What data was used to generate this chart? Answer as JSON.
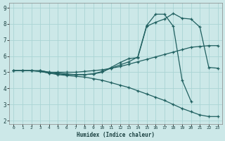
{
  "xlabel": "Humidex (Indice chaleur)",
  "bg_color": "#cce8e8",
  "line_color": "#206060",
  "grid_color": "#b0d8d8",
  "xlim": [
    -0.5,
    23.5
  ],
  "ylim": [
    1.8,
    9.3
  ],
  "xticks": [
    0,
    1,
    2,
    3,
    4,
    5,
    6,
    7,
    8,
    9,
    10,
    11,
    12,
    13,
    14,
    15,
    16,
    17,
    18,
    19,
    20,
    21,
    22,
    23
  ],
  "yticks": [
    2,
    3,
    4,
    5,
    6,
    7,
    8,
    9
  ],
  "line1_x": [
    0,
    1,
    2,
    3,
    4,
    5,
    6,
    7,
    8,
    9,
    10,
    11,
    12,
    13,
    14,
    15,
    16,
    17,
    18,
    19,
    20,
    21,
    22,
    23
  ],
  "line1_y": [
    5.1,
    5.1,
    5.1,
    5.05,
    4.95,
    4.85,
    4.8,
    4.75,
    4.7,
    4.6,
    4.5,
    4.35,
    4.2,
    4.05,
    3.85,
    3.65,
    3.45,
    3.25,
    3.0,
    2.75,
    2.55,
    2.35,
    2.25,
    2.25
  ],
  "line2_x": [
    0,
    1,
    2,
    3,
    4,
    5,
    6,
    7,
    8,
    9,
    10,
    11,
    12,
    13,
    14,
    15,
    16,
    17,
    18,
    19,
    20,
    21,
    22,
    23
  ],
  "line2_y": [
    5.1,
    5.1,
    5.1,
    5.1,
    5.0,
    5.0,
    5.0,
    5.0,
    5.05,
    5.1,
    5.15,
    5.25,
    5.35,
    5.5,
    5.65,
    5.8,
    5.95,
    6.1,
    6.25,
    6.4,
    6.55,
    6.6,
    6.65,
    6.65
  ],
  "line3_x": [
    0,
    1,
    2,
    3,
    4,
    5,
    6,
    7,
    8,
    9,
    10,
    11,
    12,
    13,
    14,
    15,
    16,
    17,
    18,
    19,
    20,
    21,
    22,
    23
  ],
  "line3_y": [
    5.1,
    5.1,
    5.1,
    5.05,
    4.95,
    4.9,
    4.85,
    4.85,
    4.85,
    4.9,
    5.0,
    5.3,
    5.6,
    5.85,
    5.9,
    7.85,
    8.1,
    8.3,
    8.65,
    8.35,
    8.3,
    7.8,
    5.3,
    5.25
  ],
  "line4_x": [
    3,
    4,
    5,
    6,
    7,
    8,
    9,
    10,
    11,
    12,
    13,
    14,
    15,
    16,
    17,
    18,
    19,
    20
  ],
  "line4_y": [
    5.1,
    5.0,
    4.95,
    4.9,
    4.85,
    4.85,
    4.9,
    5.05,
    5.25,
    5.45,
    5.65,
    5.95,
    7.9,
    8.6,
    8.6,
    7.85,
    4.5,
    3.2
  ]
}
